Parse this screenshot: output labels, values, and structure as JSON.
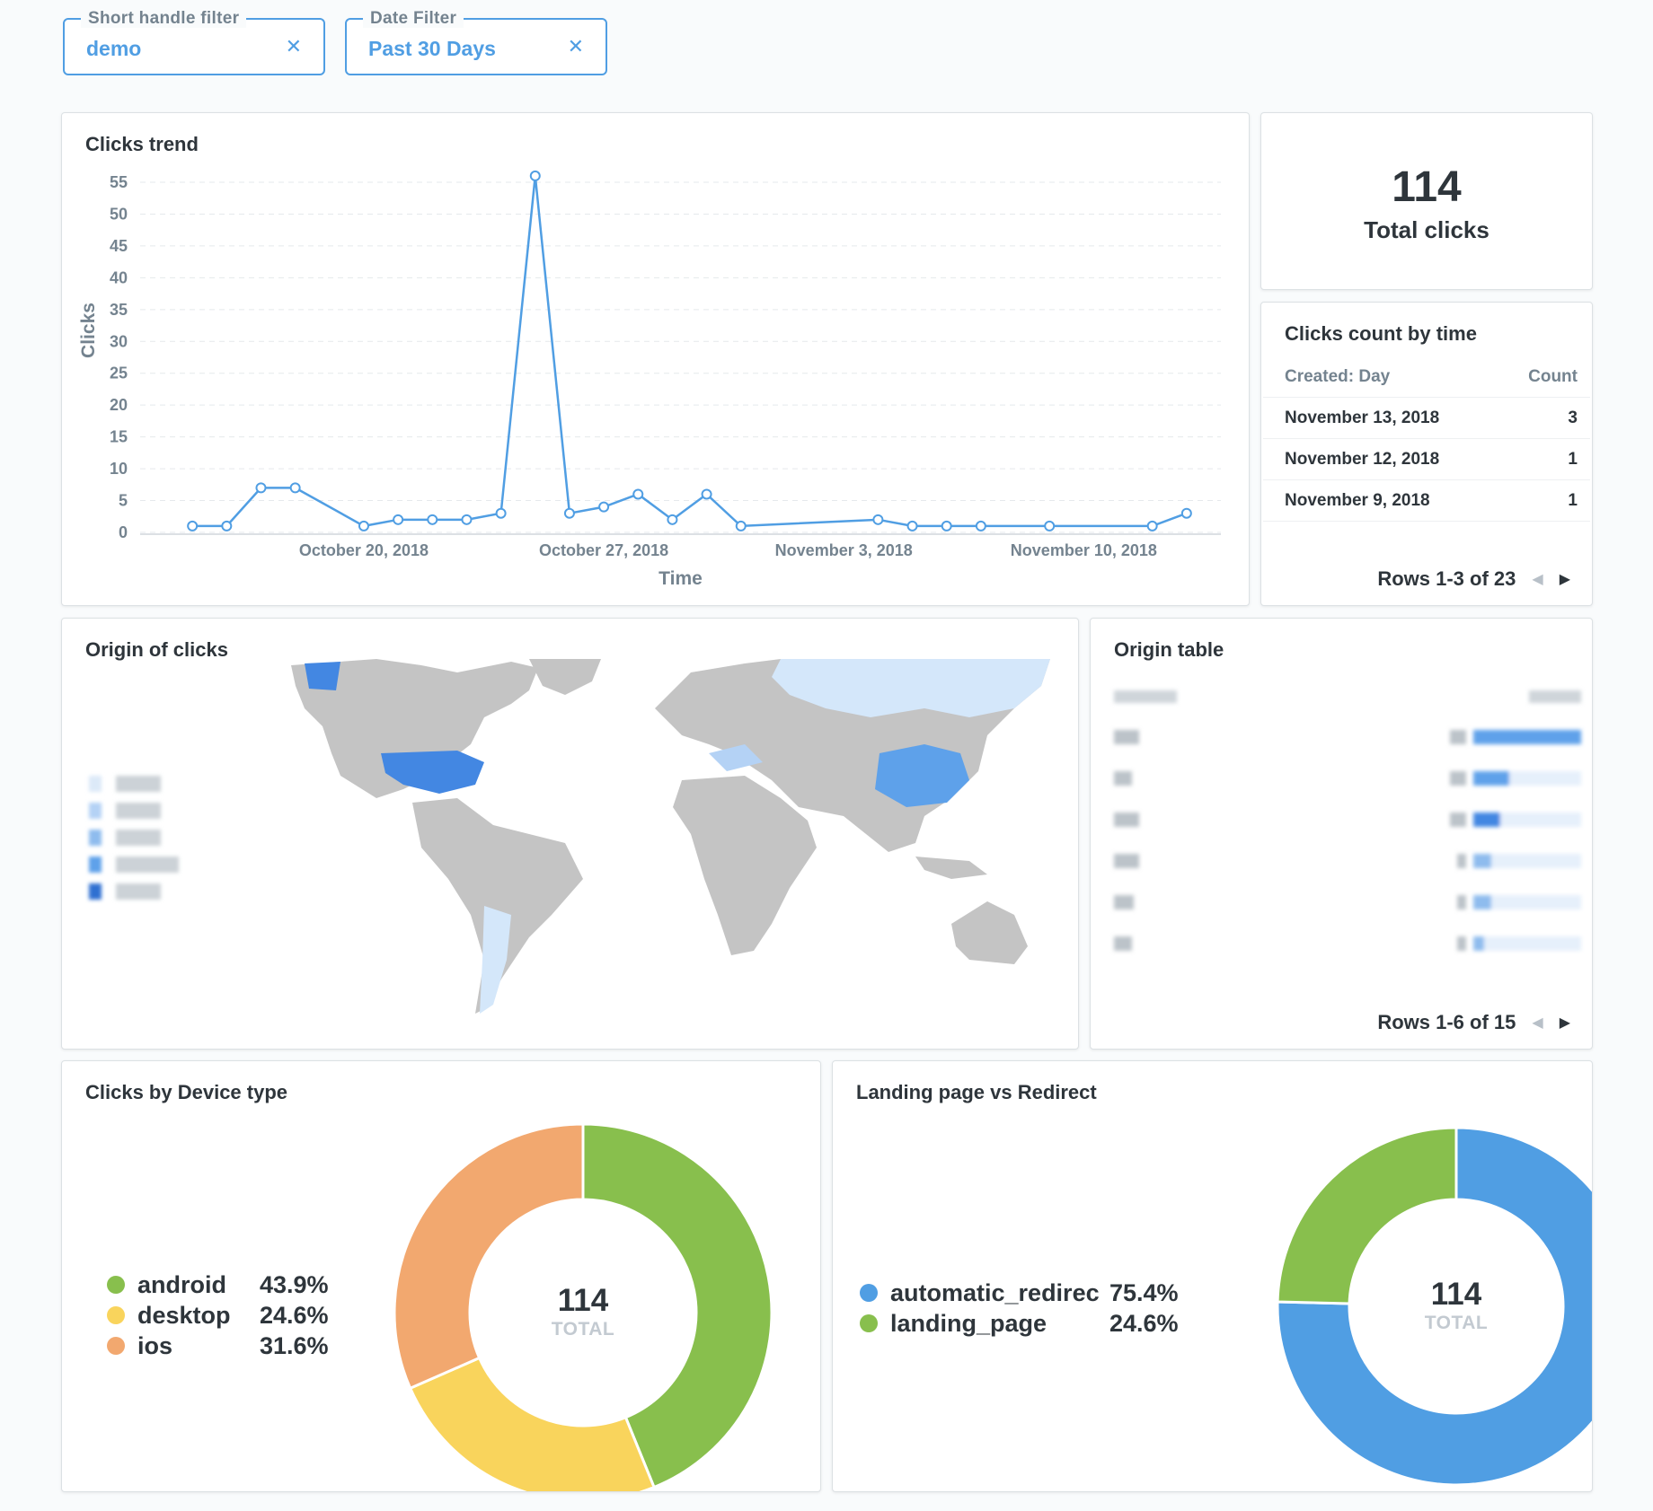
{
  "filters": [
    {
      "label": "Short handle filter",
      "value": "demo"
    },
    {
      "label": "Date Filter",
      "value": "Past 30 Days"
    }
  ],
  "clear_glyph": "✕",
  "clicks_trend": {
    "title": "Clicks trend",
    "chart_data": {
      "type": "line",
      "xlabel": "Time",
      "ylabel": "Clicks",
      "ylim": [
        0,
        55
      ],
      "yticks": [
        0,
        5,
        10,
        15,
        20,
        25,
        30,
        35,
        40,
        45,
        50,
        55
      ],
      "xtick_labels": [
        "October 20, 2018",
        "October 27, 2018",
        "November 3, 2018",
        "November 10, 2018"
      ],
      "x": [
        "2018-10-15",
        "2018-10-16",
        "2018-10-17",
        "2018-10-18",
        "2018-10-20",
        "2018-10-21",
        "2018-10-22",
        "2018-10-23",
        "2018-10-24",
        "2018-10-25",
        "2018-10-26",
        "2018-10-27",
        "2018-10-28",
        "2018-10-29",
        "2018-10-30",
        "2018-10-31",
        "2018-11-04",
        "2018-11-05",
        "2018-11-06",
        "2018-11-07",
        "2018-11-09",
        "2018-11-12",
        "2018-11-13"
      ],
      "series": [
        {
          "values": [
            1,
            1,
            7,
            7,
            1,
            2,
            2,
            2,
            3,
            56,
            3,
            4,
            6,
            2,
            6,
            1,
            2,
            1,
            1,
            1,
            1,
            1,
            3
          ]
        }
      ],
      "grid": true,
      "color": "#509ee3"
    }
  },
  "total": {
    "value": "114",
    "label": "Total clicks"
  },
  "count_by_time": {
    "title": "Clicks count by time",
    "columns": [
      "Created: Day",
      "Count"
    ],
    "rows": [
      [
        "November 13, 2018",
        "3"
      ],
      [
        "November 12, 2018",
        "1"
      ],
      [
        "November 9, 2018",
        "1"
      ]
    ],
    "pager": "Rows 1-3 of 23"
  },
  "origin_map": {
    "title": "Origin of clicks"
  },
  "origin_table": {
    "title": "Origin table",
    "pager": "Rows 1-6 of 15"
  },
  "device": {
    "title": "Clicks by Device type",
    "total": "114",
    "total_label": "TOTAL",
    "chart_data": {
      "type": "pie",
      "slices": [
        {
          "name": "android",
          "pct": "43.9%",
          "value": 43.9,
          "color": "#88bf4d"
        },
        {
          "name": "desktop",
          "pct": "24.6%",
          "value": 24.6,
          "color": "#f9d45c"
        },
        {
          "name": "ios",
          "pct": "31.6%",
          "value": 31.6,
          "color": "#f2a86f"
        }
      ]
    }
  },
  "landing": {
    "title": "Landing page vs Redirect",
    "total": "114",
    "total_label": "TOTAL",
    "chart_data": {
      "type": "pie",
      "slices": [
        {
          "name": "automatic_redirec",
          "pct": "75.4%",
          "value": 75.4,
          "color": "#509ee3"
        },
        {
          "name": "landing_page",
          "pct": "24.6%",
          "value": 24.6,
          "color": "#88bf4d"
        }
      ]
    }
  }
}
